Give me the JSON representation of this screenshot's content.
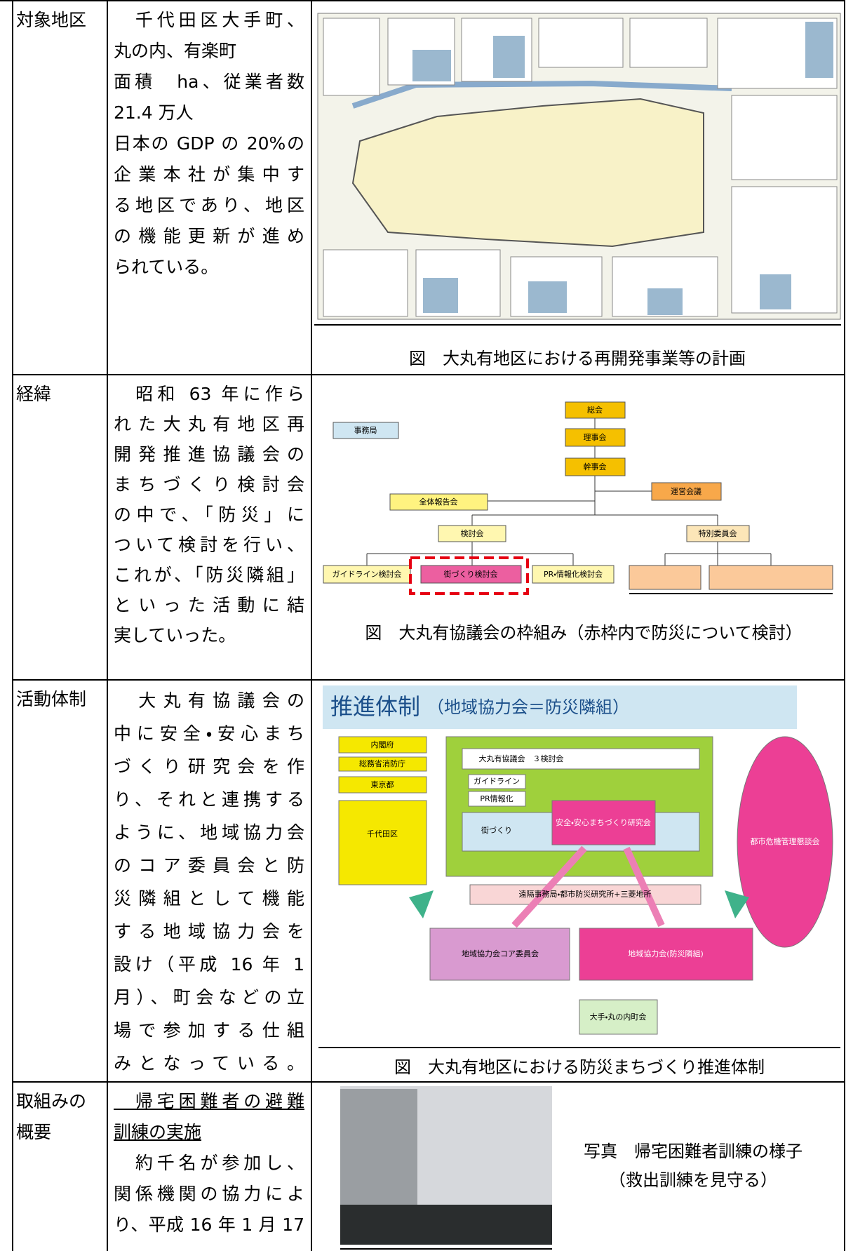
{
  "rows": [
    {
      "label": [
        "対象地区"
      ],
      "text": [
        "　千代田区大手町、",
        "丸の内、有楽町",
        "面積　ha、従業者数",
        "21.4 万人",
        "日本の GDP の 20%の",
        "企業本社が集中す",
        "る地区であり、地区",
        "の機能更新が進め",
        "られている。"
      ],
      "figure": {
        "caption": "図　大丸有地区における再開発事業等の計画"
      }
    },
    {
      "label": [
        "経緯"
      ],
      "text": [
        "　昭和 63 年に作ら",
        "れた大丸有地区再",
        "開発推進協議会の",
        "まちづくり検討会",
        "の中で、「防災」に",
        "ついて検討を行い、",
        "これが、「防災隣組」",
        "といった活動に結",
        "実していった。"
      ],
      "figure": {
        "caption": "図　大丸有協議会の枠組み（赤枠内で防災について検討）",
        "boxes": [
          "総会",
          "理事会",
          "幹事会",
          "運営会議",
          "事務局",
          "全体報告会",
          "検討会",
          "特別委員会",
          "ガイドライン検討会",
          "街づくり検討会",
          "PR・情報化検討会"
        ]
      }
    },
    {
      "label": [
        "活動体制"
      ],
      "text": [
        "　大丸有協議会の",
        "中に安全・安心まち",
        "づくり研究会を作",
        "り、それと連携する",
        "ように、地域協力会",
        "のコア委員会と防",
        "災隣組として機能",
        "する地域協力会を",
        "設け（平成 16 年 1",
        "月）、町会などの立",
        "場で参加する仕組",
        "みとなっている。"
      ],
      "figure": {
        "caption": "図　大丸有地区における防災まちづくり推進体制",
        "title": "推進体制",
        "subtitle": "（地域協力会＝防災隣組）",
        "boxes": [
          "内閣府",
          "総務省消防庁",
          "東京都",
          "千代田区",
          "大丸有協議会　３検討会",
          "ガイドライン",
          "PR情報化",
          "街づくり",
          "安全・安心まちづくり研究会",
          "遠隔事務局・都市防災研究所+三菱地所",
          "地域協力会コア委員会",
          "地域協力会(防災隣組)",
          "大手・丸の内町会",
          "都市危機管理懇談会"
        ]
      }
    },
    {
      "label": [
        "取組みの",
        "概要"
      ],
      "heading": [
        "　帰宅困難者の避難",
        "訓練の実施"
      ],
      "text": [
        "　約千名が参加し、",
        "関係機関の協力によ",
        "り、平成 16 年 1 月 17"
      ],
      "figure": {
        "caption": [
          "写真　帰宅困難者訓練の様子",
          "（救出訓練を見守る）"
        ]
      }
    }
  ]
}
